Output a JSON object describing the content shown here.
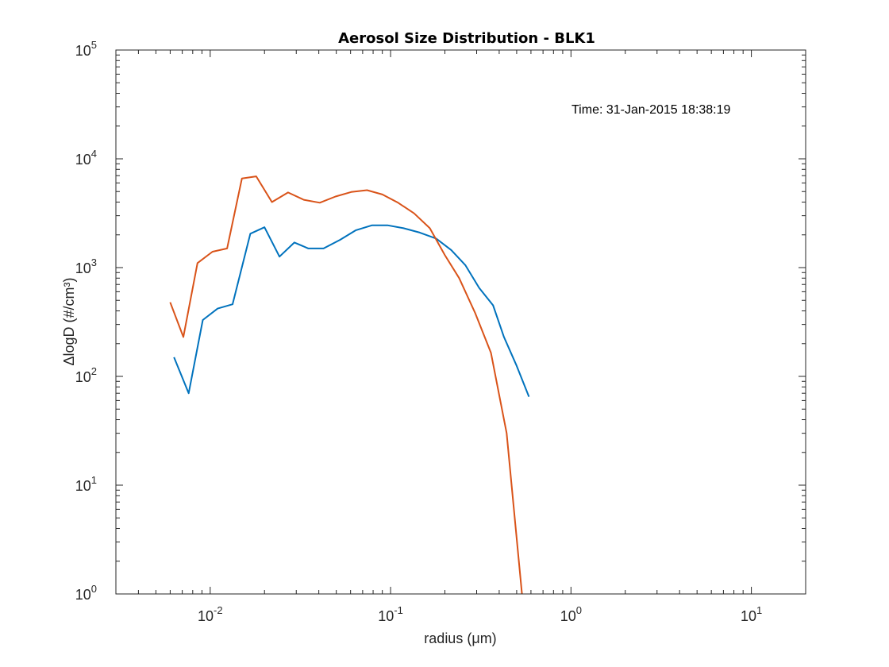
{
  "chart_data": {
    "type": "line",
    "title": "Aerosol Size Distribution - BLK1",
    "xlabel": "radius (μm)",
    "ylabel": "ΔlogD (#/cm³)",
    "xscale": "log",
    "yscale": "log",
    "xlim": [
      0.003,
      20
    ],
    "ylim": [
      1,
      100000
    ],
    "x_ticks": [
      {
        "value": 0.01,
        "base": "10",
        "exp": "-2"
      },
      {
        "value": 0.1,
        "base": "10",
        "exp": "-1"
      },
      {
        "value": 1,
        "base": "10",
        "exp": "0"
      },
      {
        "value": 10,
        "base": "10",
        "exp": "1"
      }
    ],
    "y_ticks": [
      {
        "value": 1,
        "base": "10",
        "exp": "0"
      },
      {
        "value": 10,
        "base": "10",
        "exp": "1"
      },
      {
        "value": 100,
        "base": "10",
        "exp": "2"
      },
      {
        "value": 1000,
        "base": "10",
        "exp": "3"
      },
      {
        "value": 10000,
        "base": "10",
        "exp": "4"
      },
      {
        "value": 100000,
        "base": "10",
        "exp": "5"
      }
    ],
    "grid": false,
    "annotation": "Time: 31-Jan-2015 18:38:19",
    "series": [
      {
        "color": "#0072BD",
        "x": [
          0.0063,
          0.0076,
          0.0091,
          0.011,
          0.0133,
          0.0167,
          0.02,
          0.0242,
          0.0293,
          0.035,
          0.0425,
          0.0525,
          0.064,
          0.079,
          0.096,
          0.118,
          0.145,
          0.179,
          0.217,
          0.26,
          0.31,
          0.37,
          0.425,
          0.5,
          0.585
        ],
        "y": [
          150,
          70,
          330,
          420,
          460,
          2050,
          2350,
          1260,
          1700,
          1500,
          1500,
          1800,
          2200,
          2450,
          2450,
          2300,
          2100,
          1850,
          1450,
          1050,
          650,
          450,
          230,
          125,
          65
        ]
      },
      {
        "color": "#D95319",
        "x": [
          0.006,
          0.0071,
          0.0085,
          0.0103,
          0.0124,
          0.015,
          0.018,
          0.022,
          0.027,
          0.033,
          0.0405,
          0.0495,
          0.0605,
          0.074,
          0.09,
          0.11,
          0.135,
          0.165,
          0.2,
          0.24,
          0.295,
          0.36,
          0.44,
          0.535
        ],
        "y": [
          480,
          230,
          1100,
          1400,
          1500,
          6600,
          6900,
          4000,
          4900,
          4200,
          3950,
          4500,
          4950,
          5150,
          4700,
          3950,
          3150,
          2300,
          1300,
          800,
          380,
          165,
          30,
          1
        ]
      }
    ]
  }
}
